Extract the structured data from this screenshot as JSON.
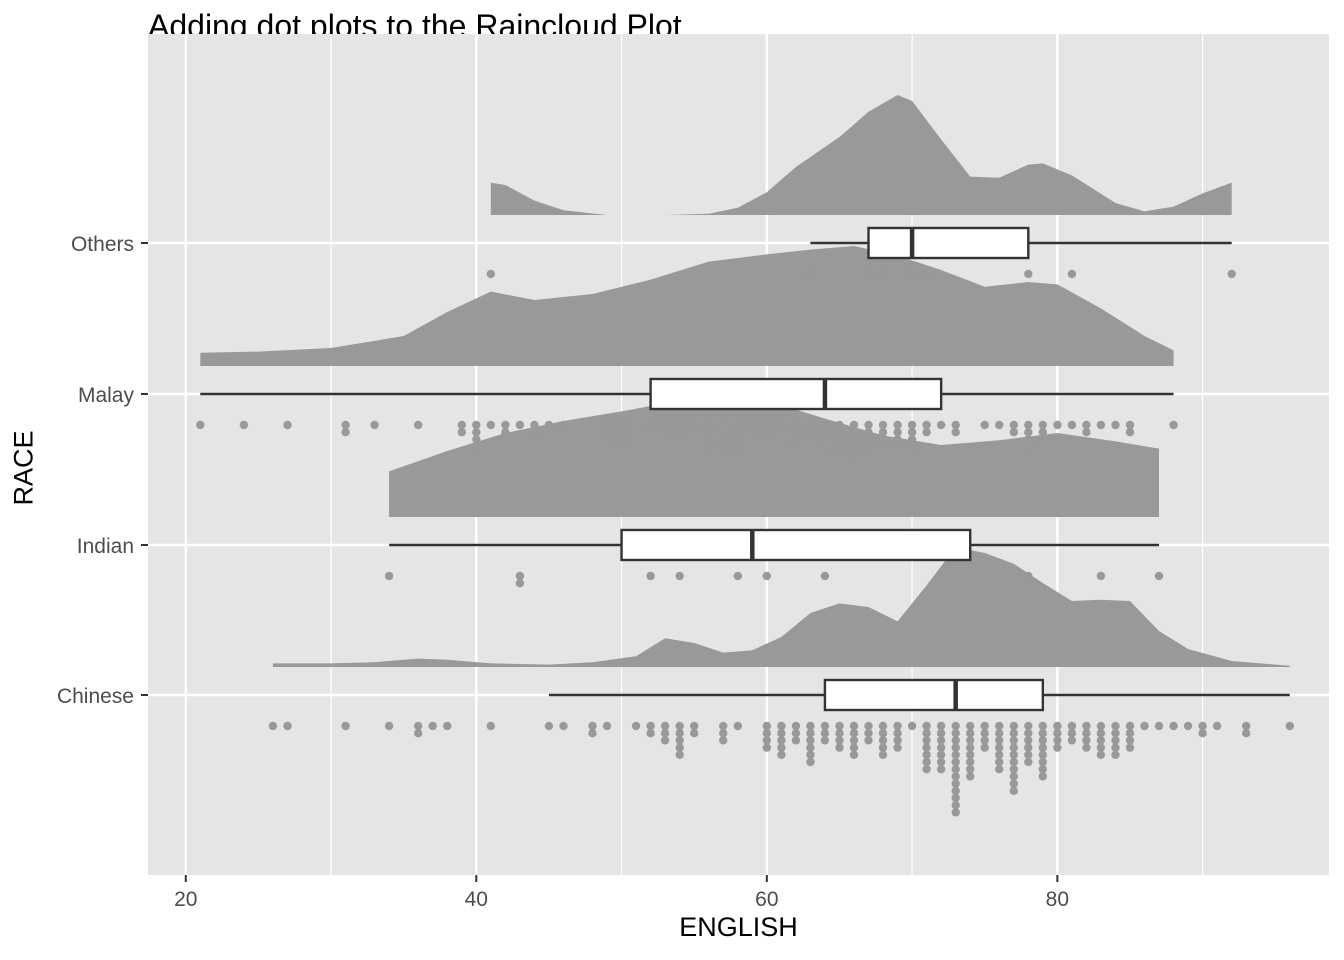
{
  "chart_data": {
    "type": "raincloud",
    "title": "Adding dot plots to the Raincloud Plot",
    "xlabel": "ENGLISH",
    "ylabel": "RACE",
    "xlim": [
      17.4,
      98.7
    ],
    "xticks": [
      20,
      40,
      60,
      80
    ],
    "x_minor_gridlines": [
      30,
      50,
      70,
      90
    ],
    "categories": [
      "Chinese",
      "Indian",
      "Malay",
      "Others"
    ],
    "colors": {
      "panel": "#E5E5E5",
      "grid": "#FFFFFF",
      "cloud": "#999999",
      "dot": "#999999",
      "box_fill": "#FFFFFF",
      "box_line": "#333333",
      "text": "#4D4D4D"
    },
    "series": [
      {
        "name": "Chinese",
        "box": {
          "lower_whisker": 45,
          "q1": 64,
          "median": 73,
          "q3": 79,
          "upper_whisker": 96
        },
        "density": [
          [
            26,
            0.03
          ],
          [
            30,
            0.03
          ],
          [
            33,
            0.04
          ],
          [
            36,
            0.07
          ],
          [
            38,
            0.06
          ],
          [
            41,
            0.03
          ],
          [
            45,
            0.02
          ],
          [
            48,
            0.04
          ],
          [
            51,
            0.09
          ],
          [
            53,
            0.24
          ],
          [
            55,
            0.2
          ],
          [
            57,
            0.12
          ],
          [
            59,
            0.14
          ],
          [
            61,
            0.25
          ],
          [
            63,
            0.45
          ],
          [
            65,
            0.53
          ],
          [
            67,
            0.5
          ],
          [
            69,
            0.38
          ],
          [
            71,
            0.68
          ],
          [
            73,
            1.0
          ],
          [
            75,
            0.95
          ],
          [
            77,
            0.86
          ],
          [
            79,
            0.7
          ],
          [
            81,
            0.55
          ],
          [
            83,
            0.56
          ],
          [
            85,
            0.55
          ],
          [
            87,
            0.3
          ],
          [
            89,
            0.15
          ],
          [
            92,
            0.05
          ],
          [
            96,
            0.01
          ]
        ],
        "dots": [
          [
            26,
            1
          ],
          [
            27,
            1
          ],
          [
            31,
            1
          ],
          [
            34,
            1
          ],
          [
            36,
            2
          ],
          [
            37,
            1
          ],
          [
            38,
            1
          ],
          [
            41,
            1
          ],
          [
            45,
            1
          ],
          [
            46,
            1
          ],
          [
            48,
            2
          ],
          [
            49,
            1
          ],
          [
            51,
            1
          ],
          [
            52,
            2
          ],
          [
            53,
            3
          ],
          [
            54,
            5
          ],
          [
            55,
            2
          ],
          [
            57,
            3
          ],
          [
            58,
            1
          ],
          [
            60,
            4
          ],
          [
            61,
            5
          ],
          [
            62,
            3
          ],
          [
            63,
            6
          ],
          [
            64,
            3
          ],
          [
            65,
            4
          ],
          [
            66,
            5
          ],
          [
            67,
            3
          ],
          [
            68,
            5
          ],
          [
            69,
            4
          ],
          [
            70,
            1
          ],
          [
            71,
            7
          ],
          [
            72,
            7
          ],
          [
            73,
            13
          ],
          [
            74,
            8
          ],
          [
            75,
            4
          ],
          [
            76,
            7
          ],
          [
            77,
            10
          ],
          [
            78,
            6
          ],
          [
            79,
            8
          ],
          [
            80,
            4
          ],
          [
            81,
            3
          ],
          [
            82,
            4
          ],
          [
            83,
            5
          ],
          [
            84,
            5
          ],
          [
            85,
            4
          ],
          [
            86,
            1
          ],
          [
            87,
            1
          ],
          [
            88,
            1
          ],
          [
            89,
            1
          ],
          [
            90,
            2
          ],
          [
            91,
            1
          ],
          [
            93,
            2
          ],
          [
            96,
            1
          ]
        ]
      },
      {
        "name": "Indian",
        "box": {
          "lower_whisker": 34,
          "q1": 50,
          "median": 59,
          "q3": 74,
          "upper_whisker": 87
        },
        "density": [
          [
            34,
            0.38
          ],
          [
            38,
            0.55
          ],
          [
            42,
            0.7
          ],
          [
            46,
            0.8
          ],
          [
            50,
            0.88
          ],
          [
            54,
            0.97
          ],
          [
            57,
            1.0
          ],
          [
            60,
            0.97
          ],
          [
            64,
            0.82
          ],
          [
            68,
            0.68
          ],
          [
            72,
            0.6
          ],
          [
            76,
            0.64
          ],
          [
            80,
            0.7
          ],
          [
            84,
            0.63
          ],
          [
            87,
            0.57
          ]
        ],
        "dots": [
          [
            34,
            1
          ],
          [
            43,
            2
          ],
          [
            52,
            1
          ],
          [
            54,
            1
          ],
          [
            58,
            1
          ],
          [
            60,
            1
          ],
          [
            64,
            1
          ],
          [
            78,
            1
          ],
          [
            83,
            1
          ],
          [
            87,
            1
          ]
        ]
      },
      {
        "name": "Malay",
        "box": {
          "lower_whisker": 21,
          "q1": 52,
          "median": 64,
          "q3": 72,
          "upper_whisker": 88
        },
        "density": [
          [
            21,
            0.11
          ],
          [
            25,
            0.12
          ],
          [
            30,
            0.15
          ],
          [
            35,
            0.25
          ],
          [
            38,
            0.45
          ],
          [
            41,
            0.62
          ],
          [
            44,
            0.55
          ],
          [
            48,
            0.6
          ],
          [
            52,
            0.72
          ],
          [
            56,
            0.87
          ],
          [
            60,
            0.93
          ],
          [
            63,
            0.97
          ],
          [
            66,
            1.0
          ],
          [
            69,
            0.92
          ],
          [
            72,
            0.8
          ],
          [
            75,
            0.66
          ],
          [
            78,
            0.7
          ],
          [
            80,
            0.68
          ],
          [
            83,
            0.48
          ],
          [
            86,
            0.25
          ],
          [
            88,
            0.13
          ]
        ],
        "dots": [
          [
            21,
            1
          ],
          [
            24,
            1
          ],
          [
            27,
            1
          ],
          [
            31,
            2
          ],
          [
            33,
            1
          ],
          [
            36,
            1
          ],
          [
            39,
            2
          ],
          [
            40,
            4
          ],
          [
            41,
            1
          ],
          [
            42,
            2
          ],
          [
            43,
            1
          ],
          [
            44,
            2
          ],
          [
            45,
            1
          ],
          [
            46,
            1
          ],
          [
            49,
            3
          ],
          [
            50,
            3
          ],
          [
            52,
            1
          ],
          [
            53,
            2
          ],
          [
            54,
            2
          ],
          [
            55,
            1
          ],
          [
            56,
            4
          ],
          [
            57,
            4
          ],
          [
            58,
            4
          ],
          [
            59,
            2
          ],
          [
            60,
            3
          ],
          [
            61,
            1
          ],
          [
            62,
            3
          ],
          [
            63,
            2
          ],
          [
            64,
            4
          ],
          [
            65,
            4
          ],
          [
            66,
            5
          ],
          [
            67,
            4
          ],
          [
            68,
            3
          ],
          [
            69,
            3
          ],
          [
            70,
            4
          ],
          [
            71,
            2
          ],
          [
            72,
            1
          ],
          [
            73,
            2
          ],
          [
            75,
            1
          ],
          [
            76,
            1
          ],
          [
            77,
            2
          ],
          [
            78,
            4
          ],
          [
            79,
            2
          ],
          [
            80,
            1
          ],
          [
            81,
            1
          ],
          [
            82,
            2
          ],
          [
            83,
            1
          ],
          [
            84,
            1
          ],
          [
            85,
            2
          ],
          [
            88,
            1
          ]
        ]
      },
      {
        "name": "Others",
        "box": {
          "lower_whisker": 63,
          "q1": 67,
          "median": 70,
          "q3": 78,
          "upper_whisker": 92
        },
        "density": [
          [
            41,
            0.27
          ],
          [
            42,
            0.25
          ],
          [
            44,
            0.12
          ],
          [
            46,
            0.04
          ],
          [
            49,
            0.0
          ],
          [
            53,
            0.0
          ],
          [
            56,
            0.01
          ],
          [
            58,
            0.06
          ],
          [
            60,
            0.19
          ],
          [
            62,
            0.4
          ],
          [
            65,
            0.65
          ],
          [
            67,
            0.86
          ],
          [
            69,
            1.0
          ],
          [
            70,
            0.95
          ],
          [
            72,
            0.63
          ],
          [
            74,
            0.32
          ],
          [
            76,
            0.31
          ],
          [
            78,
            0.42
          ],
          [
            79,
            0.43
          ],
          [
            81,
            0.33
          ],
          [
            84,
            0.1
          ],
          [
            86,
            0.03
          ],
          [
            88,
            0.07
          ],
          [
            90,
            0.18
          ],
          [
            92,
            0.27
          ]
        ],
        "dots": [
          [
            41,
            1
          ],
          [
            63,
            1
          ],
          [
            67,
            1
          ],
          [
            68,
            1
          ],
          [
            70,
            1
          ],
          [
            71,
            1
          ],
          [
            78,
            1
          ],
          [
            81,
            1
          ],
          [
            92,
            1
          ]
        ]
      }
    ]
  }
}
